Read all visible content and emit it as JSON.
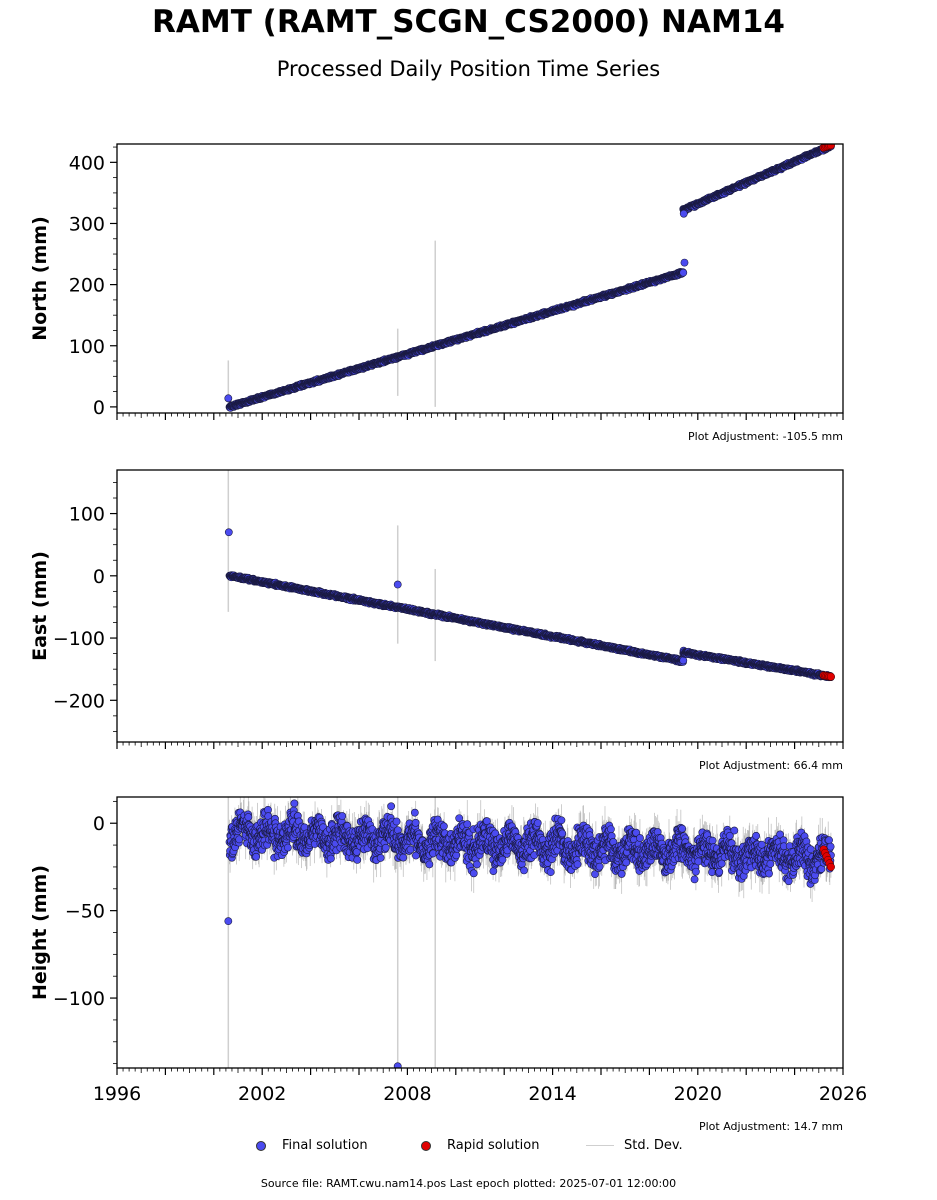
{
  "title": "RAMT (RAMT_SCGN_CS2000) NAM14",
  "subtitle": "Processed Daily Position Time Series",
  "footer": "Source file: RAMT.cwu.nam14.pos  Last epoch plotted: 2025-07-01 12:00:00",
  "legend": {
    "final": "Final solution",
    "rapid": "Rapid solution",
    "stddev": "Std. Dev."
  },
  "colors": {
    "final": "#4b4bf0",
    "rapid": "#e00000",
    "stddev": "#cfcfcf",
    "marker_edge": "#1a1a40"
  },
  "chart_data": [
    {
      "type": "scatter",
      "ylabel": "North (mm)",
      "adjustment": "Plot Adjustment: -105.5 mm",
      "xlim": [
        1996,
        2026
      ],
      "ylim": [
        -10,
        430
      ],
      "yticks": [
        0,
        100,
        200,
        300,
        400
      ],
      "xticks": [
        1996,
        2002,
        2008,
        2014,
        2020,
        2026
      ],
      "show_xtick_labels": false,
      "segments": [
        {
          "x": [
            2000.65,
            2019.4
          ],
          "y": [
            0,
            220
          ]
        },
        {
          "x": [
            2019.4,
            2025.5
          ],
          "y": [
            322,
            427
          ]
        }
      ],
      "outliers": [
        {
          "x": 2000.6,
          "y": 14
        },
        {
          "x": 2019.45,
          "y": 236
        },
        {
          "x": 2019.42,
          "y": 316
        }
      ],
      "error_bars": [
        {
          "x": 2000.6,
          "low": -5,
          "high": 76
        },
        {
          "x": 2007.6,
          "low": 18,
          "high": 128
        },
        {
          "x": 2009.15,
          "low": 0,
          "high": 272
        }
      ],
      "rapid": {
        "x": [
          2025.2,
          2025.5
        ],
        "y": [
          424,
          428
        ]
      },
      "noise": 2
    },
    {
      "type": "scatter",
      "ylabel": "East (mm)",
      "adjustment": "Plot Adjustment: 66.4 mm",
      "xlim": [
        1996,
        2026
      ],
      "ylim": [
        -267,
        170
      ],
      "yticks": [
        -200,
        -100,
        0,
        100
      ],
      "xticks": [
        1996,
        2002,
        2008,
        2014,
        2020,
        2026
      ],
      "show_xtick_labels": false,
      "segments": [
        {
          "x": [
            2000.65,
            2019.4
          ],
          "y": [
            0,
            -137
          ]
        },
        {
          "x": [
            2019.4,
            2025.5
          ],
          "y": [
            -123,
            -162
          ]
        }
      ],
      "outliers": [
        {
          "x": 2000.62,
          "y": 70
        },
        {
          "x": 2007.6,
          "y": -14
        }
      ],
      "error_bars": [
        {
          "x": 2000.6,
          "low": -58,
          "high": 170
        },
        {
          "x": 2007.6,
          "low": -109,
          "high": 81
        },
        {
          "x": 2009.15,
          "low": -137,
          "high": 11
        }
      ],
      "rapid": {
        "x": [
          2025.2,
          2025.5
        ],
        "y": [
          -160,
          -162
        ]
      },
      "noise": 2
    },
    {
      "type": "scatter",
      "ylabel": "Height (mm)",
      "adjustment": "Plot Adjustment: 14.7 mm",
      "xlim": [
        1996,
        2026
      ],
      "ylim": [
        -140,
        15
      ],
      "yticks": [
        -100,
        -50,
        0
      ],
      "xticks": [
        1996,
        2002,
        2008,
        2014,
        2020,
        2026
      ],
      "show_xtick_labels": true,
      "segments": [
        {
          "x": [
            2000.65,
            2025.5
          ],
          "y": [
            -5,
            -20
          ]
        }
      ],
      "outliers": [
        {
          "x": 2000.6,
          "y": -56
        },
        {
          "x": 2007.6,
          "y": -139
        }
      ],
      "error_bars": [
        {
          "x": 2000.6,
          "low": -140,
          "high": 15
        },
        {
          "x": 2007.6,
          "low": -140,
          "high": 15
        },
        {
          "x": 2009.15,
          "low": -140,
          "high": 15
        }
      ],
      "rapid": {
        "x": [
          2025.2,
          2025.5
        ],
        "y": [
          -15,
          -25
        ]
      },
      "noise": 9,
      "seasonal_amplitude": 5
    }
  ]
}
